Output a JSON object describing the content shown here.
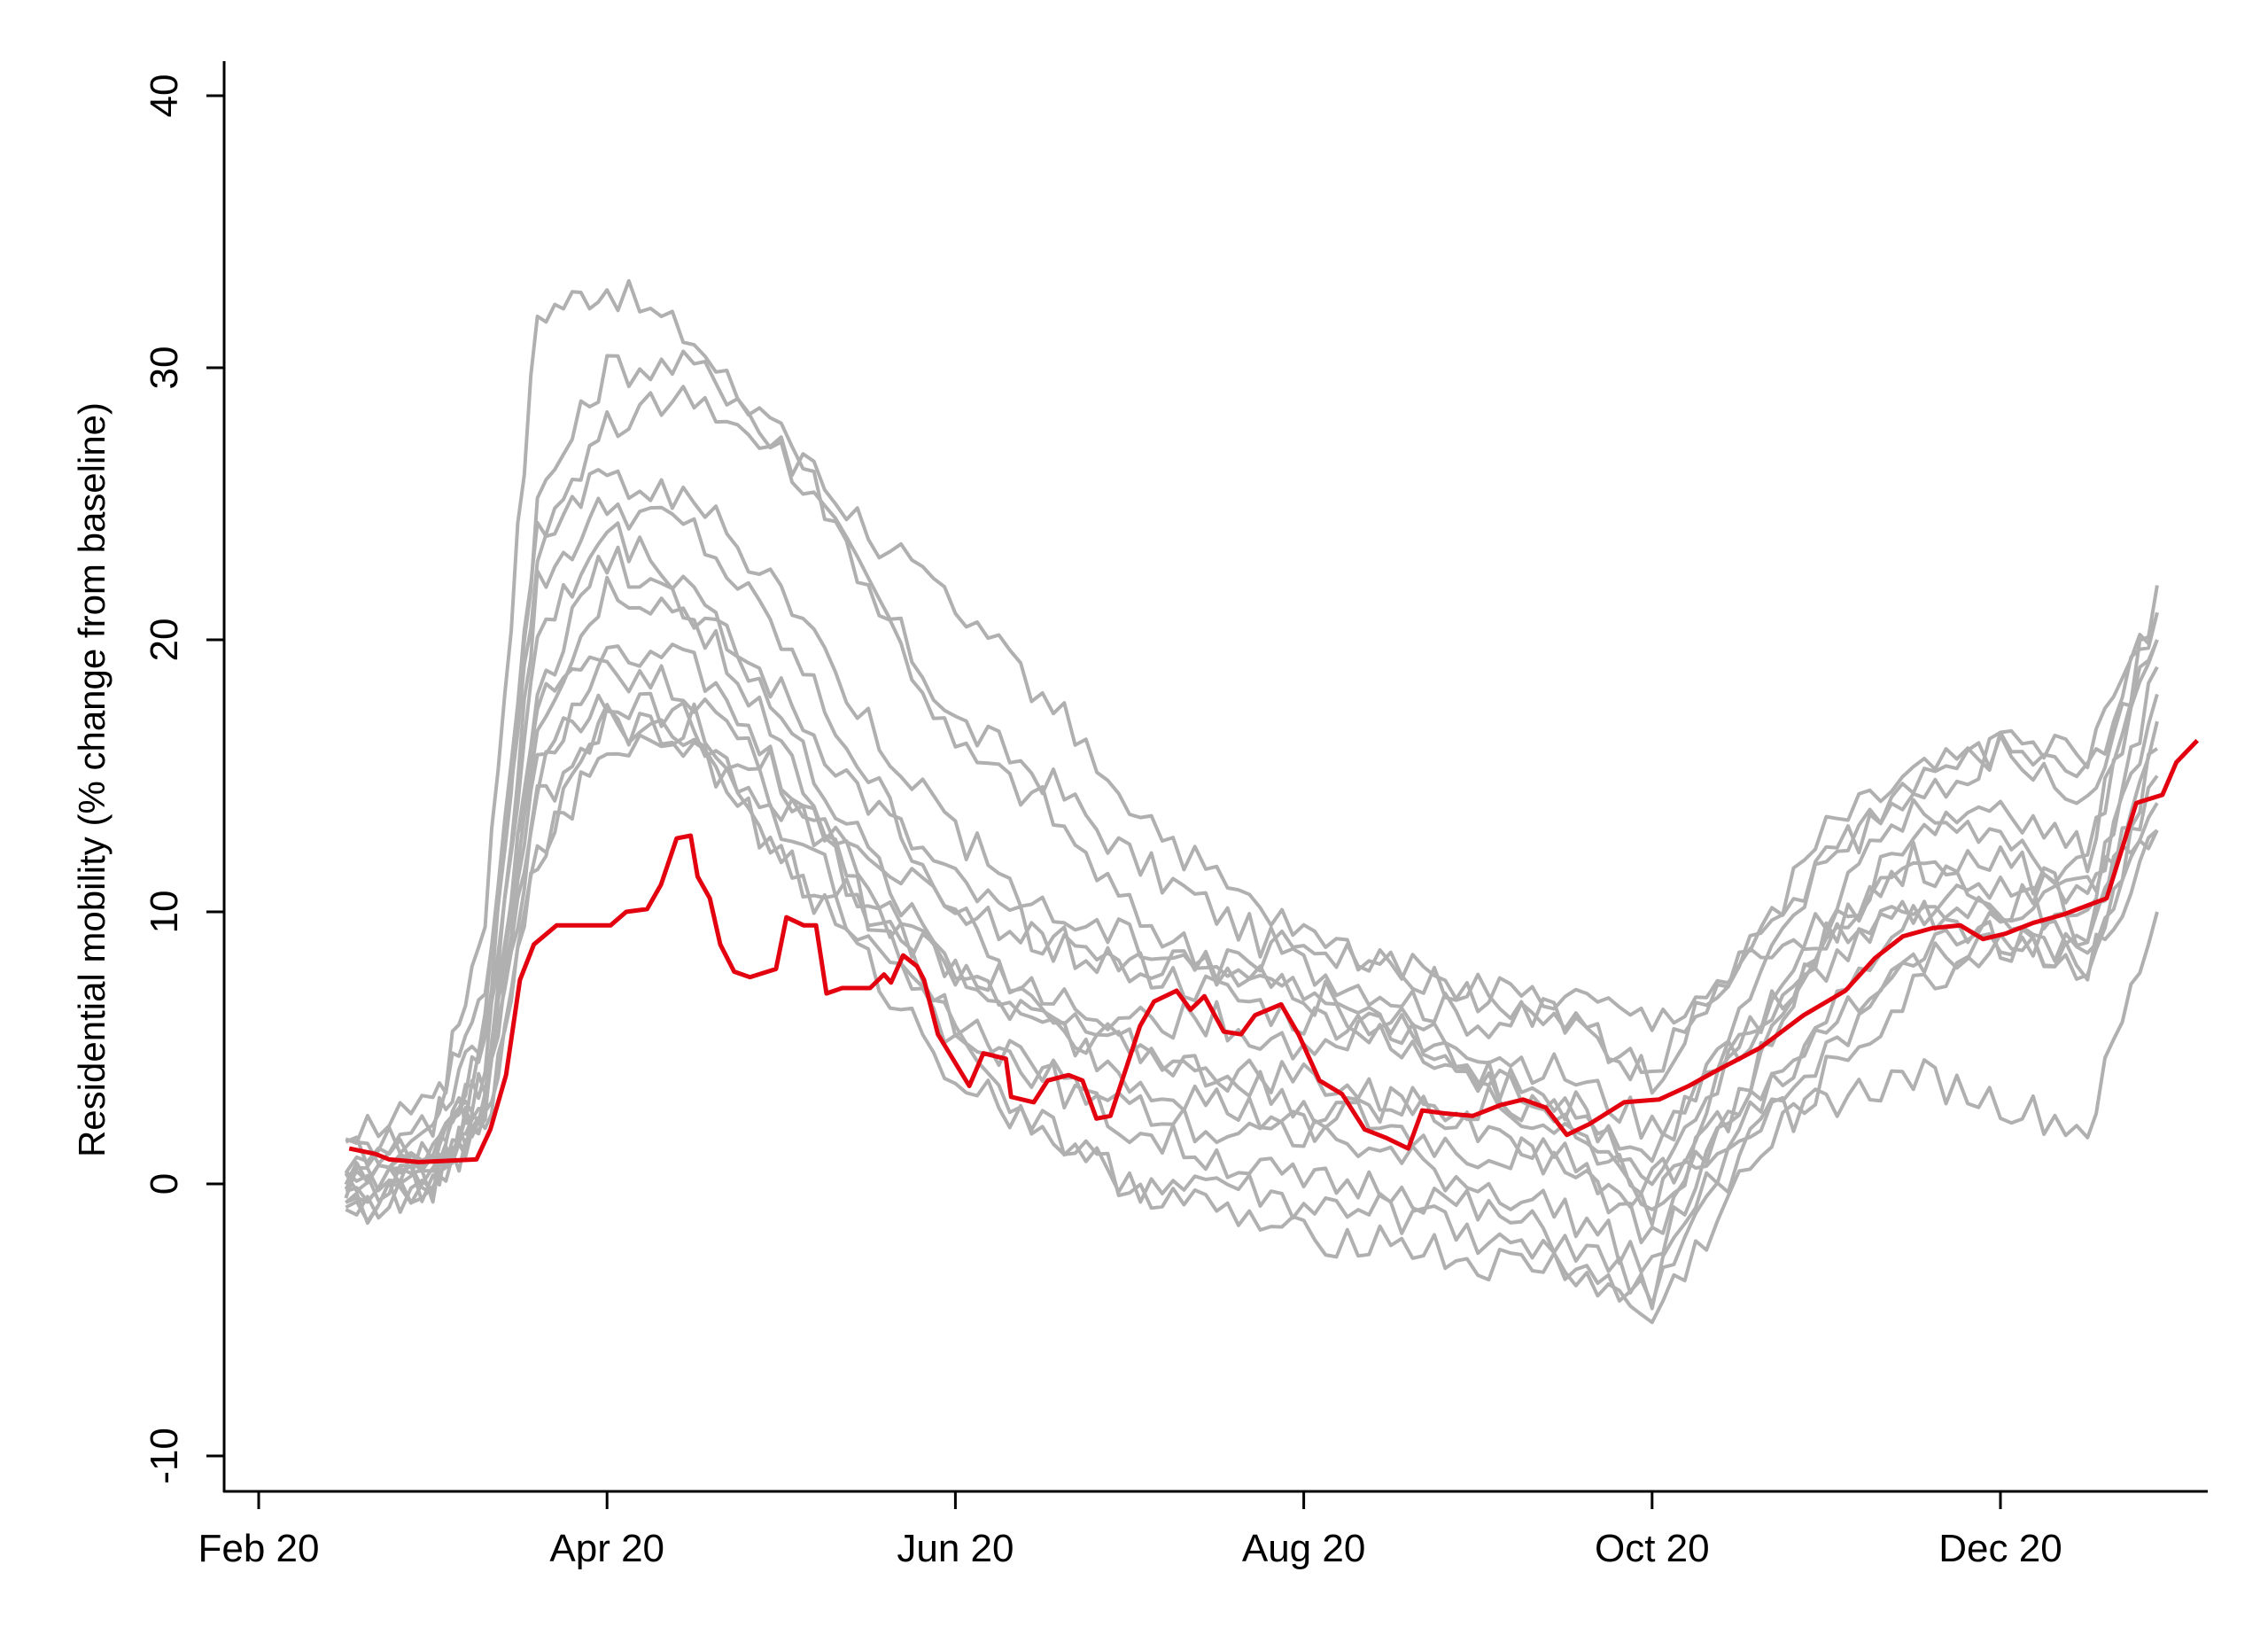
{
  "chart_data": {
    "type": "line",
    "title": "",
    "xlabel": "",
    "ylabel": "Residential mobility (% change from baseline)",
    "x_units": "months since Feb 2020",
    "xlim": [
      -0.12,
      11.1
    ],
    "ylim": [
      -11.3,
      41.2
    ],
    "grid": false,
    "legend": "none",
    "x_ticks": [
      {
        "value": 0,
        "label": "Feb 20"
      },
      {
        "value": 2,
        "label": "Apr 20"
      },
      {
        "value": 4,
        "label": "Jun 20"
      },
      {
        "value": 6,
        "label": "Aug 20"
      },
      {
        "value": 8,
        "label": "Oct 20"
      },
      {
        "value": 10,
        "label": "Dec 20"
      }
    ],
    "y_ticks": [
      {
        "value": -10,
        "label": "-10"
      },
      {
        "value": 0,
        "label": "0"
      },
      {
        "value": 10,
        "label": "10"
      },
      {
        "value": 20,
        "label": "20"
      },
      {
        "value": 30,
        "label": "30"
      },
      {
        "value": 40,
        "label": "40"
      }
    ],
    "colors": {
      "highlight": "#e3000f",
      "others": "#b0b0b0",
      "axis": "#000000"
    },
    "gray_x": [
      0.5,
      1.0,
      1.3,
      1.6,
      2.0,
      2.5,
      3.0,
      3.5,
      4.0,
      4.5,
      5.0,
      5.5,
      6.0,
      6.5,
      7.0,
      7.5,
      8.0,
      8.5,
      9.0,
      9.5,
      10.0,
      10.5,
      10.9
    ],
    "gray_series": [
      [
        1,
        2,
        10,
        32,
        33,
        31,
        27,
        22,
        17,
        15,
        12,
        10,
        8,
        7,
        6,
        6,
        4,
        8,
        13,
        15,
        16,
        15,
        21
      ],
      [
        0,
        1,
        5,
        25,
        30,
        30,
        28,
        22,
        16,
        14,
        10,
        8,
        7,
        5,
        4,
        3,
        1,
        6,
        12,
        15,
        16,
        14,
        20
      ],
      [
        0,
        1,
        4,
        22,
        25,
        24,
        20,
        15,
        10,
        6,
        4,
        3,
        2,
        1,
        0,
        -1,
        -3,
        3,
        9,
        12,
        12,
        10,
        19
      ],
      [
        -1,
        0,
        3,
        18,
        19,
        18,
        15,
        10,
        6,
        4,
        2,
        1,
        0,
        0,
        -1,
        -2,
        -4,
        2,
        6,
        10,
        11,
        9,
        17
      ],
      [
        0,
        0,
        3,
        16,
        18,
        17,
        12,
        8,
        4,
        2,
        0,
        -1,
        -2,
        -2,
        -3,
        -3,
        -5,
        0,
        4,
        7,
        9,
        8,
        14
      ],
      [
        1,
        1,
        5,
        20,
        24,
        22,
        17,
        12,
        8,
        6,
        5,
        4,
        3,
        2,
        1,
        1,
        -2,
        3,
        9,
        13,
        14,
        12,
        22
      ],
      [
        0,
        0,
        2,
        12,
        17,
        16,
        12,
        9,
        6,
        4,
        3,
        2,
        2,
        3,
        2,
        1,
        -1,
        5,
        10,
        14,
        13,
        10,
        18
      ],
      [
        -1,
        0,
        3,
        15,
        20,
        19,
        15,
        11,
        8,
        7,
        6,
        6,
        5,
        6,
        4,
        3,
        0,
        5,
        9,
        12,
        10,
        8,
        15
      ],
      [
        0,
        1,
        4,
        17,
        22,
        21,
        18,
        14,
        11,
        9,
        8,
        7,
        6,
        6,
        5,
        4,
        2,
        5,
        8,
        10,
        10,
        11,
        13
      ],
      [
        0,
        0,
        3,
        18,
        23,
        21,
        16,
        10,
        5,
        2,
        0,
        0,
        -1,
        -1,
        -2,
        -3,
        -4,
        1,
        5,
        8,
        10,
        12,
        20
      ],
      [
        2,
        3,
        7,
        24,
        26,
        25,
        22,
        17,
        13,
        10,
        9,
        8,
        7,
        6,
        4,
        2,
        -1,
        3,
        6,
        8,
        9,
        9,
        16
      ],
      [
        0,
        1,
        3,
        14,
        17,
        16,
        13,
        10,
        8,
        6,
        5,
        4,
        4,
        3,
        3,
        2,
        0,
        2,
        3,
        4,
        3,
        2,
        10
      ],
      [
        -1,
        0,
        2,
        12,
        16,
        17,
        14,
        12,
        10,
        9,
        8,
        8,
        9,
        8,
        7,
        7,
        6,
        8,
        9,
        10,
        9,
        8,
        13
      ],
      [
        1,
        2,
        6,
        23,
        28,
        29,
        27,
        24,
        21,
        18,
        14,
        11,
        9,
        8,
        7,
        6,
        4,
        8,
        12,
        14,
        16,
        16,
        21
      ]
    ],
    "highlight_series": {
      "x": [
        0.52,
        0.67,
        0.75,
        0.92,
        1.25,
        1.33,
        1.42,
        1.5,
        1.58,
        1.71,
        2.02,
        2.11,
        2.23,
        2.31,
        2.4,
        2.48,
        2.52,
        2.59,
        2.65,
        2.73,
        2.82,
        2.97,
        3.03,
        3.13,
        3.2,
        3.26,
        3.35,
        3.51,
        3.59,
        3.63,
        3.7,
        3.78,
        3.82,
        3.9,
        4.08,
        4.16,
        4.29,
        4.32,
        4.45,
        4.53,
        4.65,
        4.73,
        4.81,
        4.89,
        5.06,
        5.14,
        5.27,
        5.35,
        5.43,
        5.54,
        5.64,
        5.72,
        5.87,
        5.97,
        6.09,
        6.22,
        6.35,
        6.47,
        6.6,
        6.68,
        6.8,
        6.97,
        7.13,
        7.26,
        7.39,
        7.51,
        7.64,
        7.84,
        8.04,
        8.21,
        8.38,
        8.62,
        8.87,
        9.11,
        9.28,
        9.44,
        9.61,
        9.77,
        9.9,
        10.03,
        10.19,
        10.36,
        10.61,
        10.78,
        10.93,
        11.01,
        11.13
      ],
      "y": [
        1.3,
        1.1,
        0.9,
        0.8,
        0.9,
        2,
        4,
        7.5,
        8.8,
        9.5,
        9.5,
        10,
        10.1,
        11,
        12.7,
        12.8,
        11.3,
        10.5,
        8.8,
        7.8,
        7.6,
        7.9,
        9.8,
        9.5,
        9.5,
        7,
        7.2,
        7.2,
        7.7,
        7.4,
        8.4,
        8,
        7.5,
        5.5,
        3.6,
        4.8,
        4.6,
        3.2,
        3,
        3.8,
        4,
        3.8,
        2.4,
        2.5,
        5.8,
        6.7,
        7.1,
        6.4,
        6.9,
        5.6,
        5.5,
        6.2,
        6.6,
        5.5,
        3.8,
        3.3,
        2,
        1.7,
        1.3,
        2.7,
        2.6,
        2.5,
        2.9,
        3.1,
        2.8,
        1.8,
        2.2,
        3,
        3.1,
        3.6,
        4.2,
        5,
        6.2,
        7.1,
        8.3,
        9.1,
        9.4,
        9.5,
        9,
        9.2,
        9.6,
        9.9,
        10.5,
        14,
        14.3,
        15.5,
        16.3
      ]
    }
  }
}
